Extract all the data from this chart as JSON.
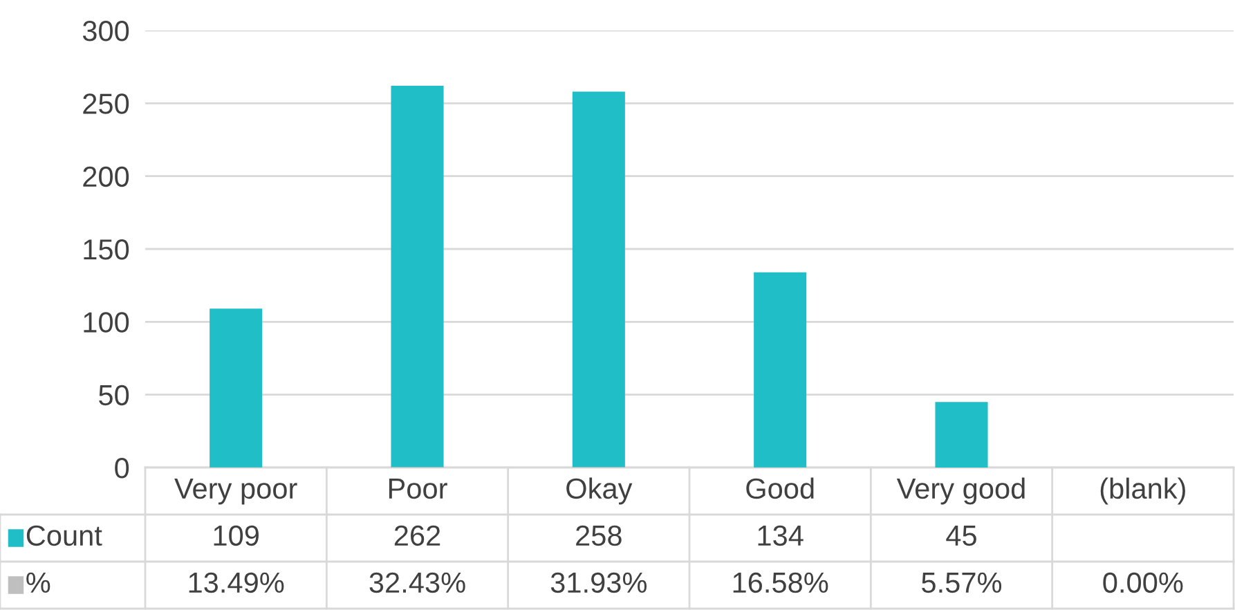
{
  "chart_data": {
    "type": "bar",
    "categories": [
      "Very poor",
      "Poor",
      "Okay",
      "Good",
      "Very good",
      "(blank)"
    ],
    "series": [
      {
        "name": "Count",
        "color": "#20bec6",
        "values": [
          109,
          262,
          258,
          134,
          45,
          null
        ],
        "value_labels": [
          "109",
          "262",
          "258",
          "134",
          "45",
          null
        ]
      },
      {
        "name": "%",
        "color": "#bfbfbf",
        "values": [
          0.1349,
          0.3243,
          0.3193,
          0.1658,
          0.0557,
          0
        ],
        "value_labels": [
          "13.49%",
          "32.43%",
          "31.93%",
          "16.58%",
          "5.57%",
          "0.00%"
        ]
      }
    ],
    "ylim": [
      0,
      300
    ],
    "yticks": [
      0,
      50,
      100,
      150,
      200,
      250,
      300
    ],
    "grid": "y",
    "legend": "left"
  }
}
